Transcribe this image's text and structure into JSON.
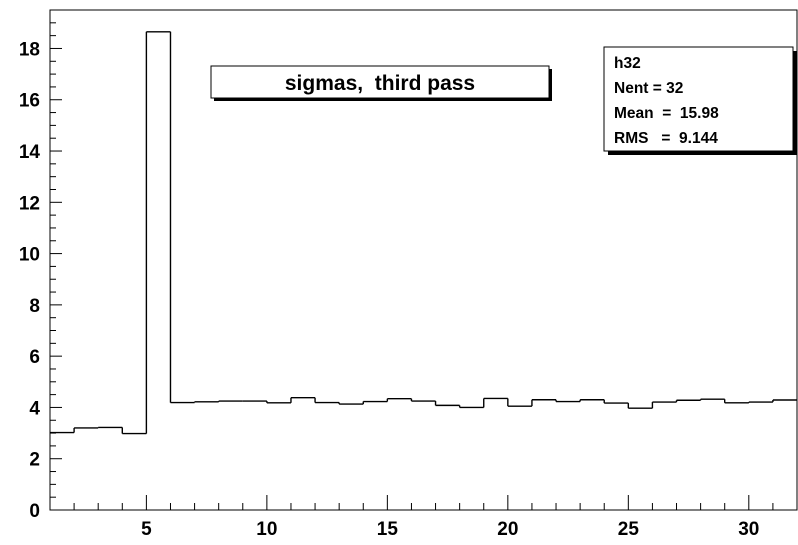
{
  "chart_data": {
    "type": "bar",
    "histogram_name": "h32",
    "title": "sigmas,  third pass",
    "xlabel": "",
    "ylabel": "",
    "x_bin_edges": [
      0.0,
      1.0,
      2.0,
      3.0,
      4.0,
      5.0,
      6.0,
      7.0,
      8.0,
      9.0,
      10.0,
      11.0,
      12.0,
      13.0,
      14.0,
      15.0,
      16.0,
      17.0,
      18.0,
      19.0,
      20.0,
      21.0,
      22.0,
      23.0,
      24.0,
      25.0,
      26.0,
      27.0,
      28.0,
      29.0,
      30.0,
      31.0,
      32.0
    ],
    "values": [
      3.02,
      3.02,
      3.2,
      3.22,
      2.98,
      18.65,
      4.19,
      4.22,
      4.25,
      4.25,
      4.18,
      4.38,
      4.19,
      4.13,
      4.23,
      4.34,
      4.25,
      4.08,
      4.0,
      4.35,
      4.05,
      4.3,
      4.23,
      4.3,
      4.17,
      3.97,
      4.21,
      4.28,
      4.32,
      4.18,
      4.21,
      4.29
    ],
    "xlim": [
      1,
      32
    ],
    "ylim": [
      0,
      19.5
    ],
    "x_ticks": [
      5,
      10,
      15,
      20,
      25,
      30
    ],
    "y_ticks": [
      0,
      2,
      4,
      6,
      8,
      10,
      12,
      14,
      16,
      18
    ],
    "grid": false,
    "legend": "none",
    "stats_box": {
      "name": "h32",
      "nent_label": "Nent = 32",
      "mean_label": "Mean  =  15.98",
      "rms_label": "RMS   =  9.144",
      "placement": "top-right"
    },
    "colors": {
      "line": "#000000",
      "background": "#ffffff"
    }
  }
}
